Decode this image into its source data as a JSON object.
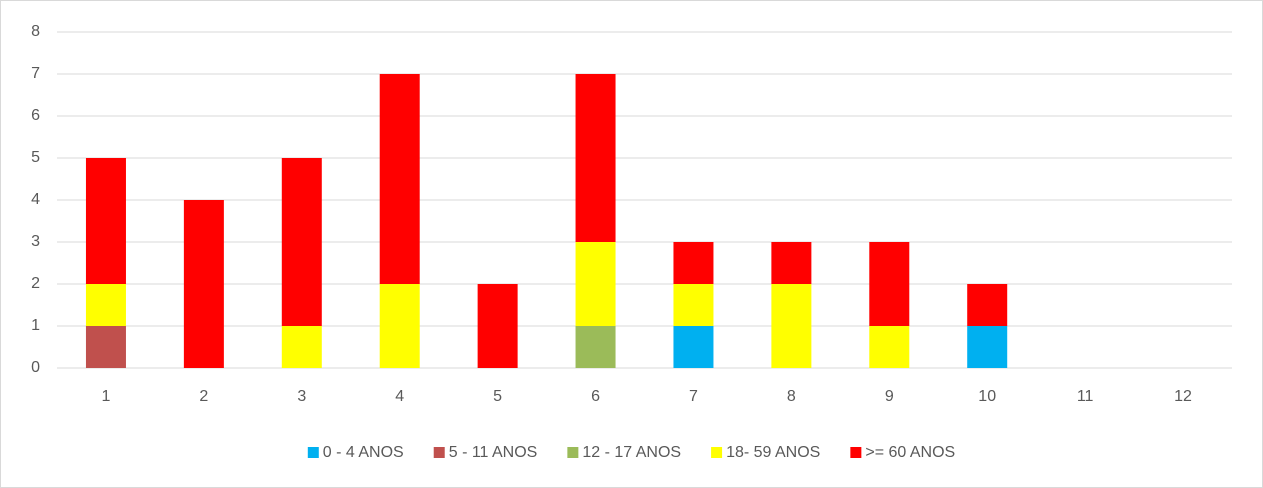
{
  "chart_data": {
    "type": "stacked_bar",
    "categories": [
      "1",
      "2",
      "3",
      "4",
      "5",
      "6",
      "7",
      "8",
      "9",
      "10",
      "11",
      "12"
    ],
    "series": [
      {
        "name": "0 - 4 ANOS",
        "color": "#00b0f0",
        "values": [
          0,
          0,
          0,
          0,
          0,
          0,
          1,
          0,
          0,
          1,
          0,
          0
        ]
      },
      {
        "name": "5 - 11 ANOS",
        "color": "#c0504d",
        "values": [
          1,
          0,
          0,
          0,
          0,
          0,
          0,
          0,
          0,
          0,
          0,
          0
        ]
      },
      {
        "name": "12 - 17 ANOS",
        "color": "#9bbb59",
        "values": [
          0,
          0,
          0,
          0,
          0,
          1,
          0,
          0,
          0,
          0,
          0,
          0
        ]
      },
      {
        "name": "18- 59 ANOS",
        "color": "#ffff00",
        "values": [
          1,
          0,
          1,
          2,
          0,
          2,
          1,
          2,
          1,
          0,
          0,
          0
        ]
      },
      {
        "name": ">= 60 ANOS",
        "color": "#ff0000",
        "values": [
          3,
          4,
          4,
          5,
          2,
          4,
          1,
          1,
          2,
          1,
          0,
          0
        ]
      }
    ],
    "ylim": [
      0,
      8
    ],
    "yticks": [
      0,
      1,
      2,
      3,
      4,
      5,
      6,
      7,
      8
    ],
    "grid": true,
    "legend": "bottom"
  }
}
